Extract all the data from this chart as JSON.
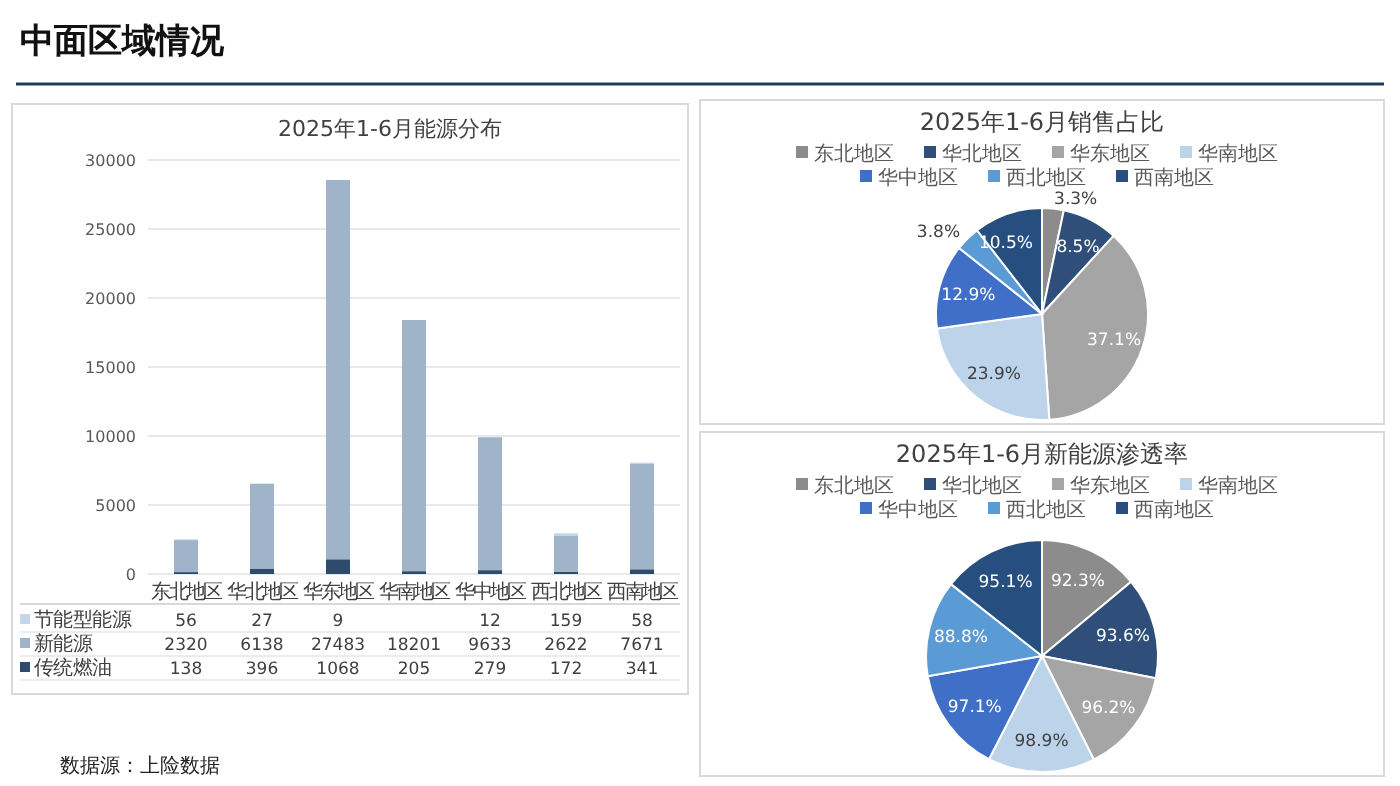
{
  "chart_data": [
    {
      "type": "other",
      "title": "中面区域情况",
      "annotations": [
        "数据源：上险数据"
      ]
    },
    {
      "type": "bar",
      "title": "2025年1-6月能源分布",
      "stacked": true,
      "categories": [
        "东北地区",
        "华北地区",
        "华东地区",
        "华南地区",
        "华中地区",
        "西北地区",
        "西南地区"
      ],
      "series": [
        {
          "name": "传统燃油",
          "color": "#2e4b6e",
          "values": [
            138,
            396,
            1068,
            205,
            279,
            172,
            341
          ]
        },
        {
          "name": "新能源",
          "color": "#9fb4c9",
          "values": [
            2320,
            6138,
            27483,
            18201,
            9633,
            2622,
            7671
          ]
        },
        {
          "name": "节能型能源",
          "color": "#c5d6e8",
          "values": [
            56,
            27,
            9,
            null,
            12,
            159,
            58
          ]
        }
      ],
      "ylim": [
        0,
        30000
      ],
      "yticks": [
        0,
        5000,
        10000,
        15000,
        20000,
        25000,
        30000
      ],
      "grid": "y",
      "legend": "bottom",
      "data_labels": true
    },
    {
      "type": "pie",
      "title": "2025年1-6月销售占比",
      "categories": [
        "东北地区",
        "华北地区",
        "华东地区",
        "华南地区",
        "华中地区",
        "西北地区",
        "西南地区"
      ],
      "values": [
        3.3,
        8.5,
        37.1,
        23.9,
        12.9,
        3.8,
        10.5
      ],
      "value_labels": [
        "3.3%",
        "8.5%",
        "37.1%",
        "23.9%",
        "12.9%",
        "3.8%",
        "10.5%"
      ],
      "colors": [
        "#8c8c8c",
        "#2f4f7a",
        "#a5a5a5",
        "#bcd3ea",
        "#3f6fc6",
        "#5b9bd5",
        "#264f7f"
      ],
      "legend": "top"
    },
    {
      "type": "pie",
      "title": "2025年1-6月新能源渗透率",
      "categories": [
        "东北地区",
        "华北地区",
        "华东地区",
        "华南地区",
        "华中地区",
        "西北地区",
        "西南地区"
      ],
      "values": [
        92.3,
        93.6,
        96.2,
        98.9,
        97.1,
        88.8,
        95.1
      ],
      "value_labels": [
        "92.3%",
        "93.6%",
        "96.2%",
        "98.9%",
        "97.1%",
        "88.8%",
        "95.1%"
      ],
      "colors": [
        "#8c8c8c",
        "#2f4f7a",
        "#a5a5a5",
        "#bcd3ea",
        "#3f6fc6",
        "#5b9bd5",
        "#264f7f"
      ],
      "legend": "top"
    }
  ]
}
